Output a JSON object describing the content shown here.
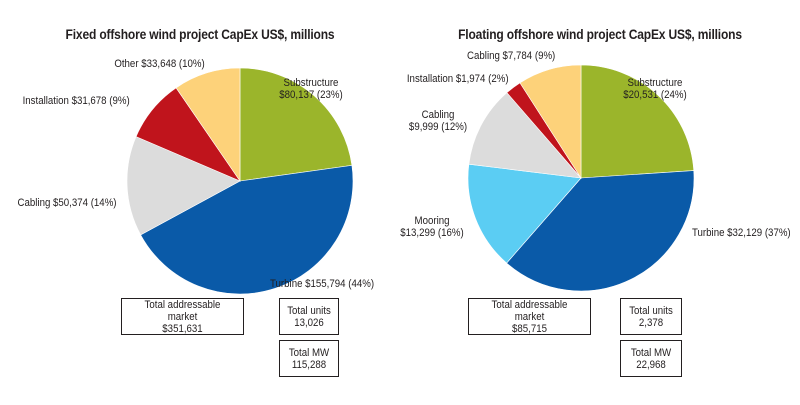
{
  "chart_data": [
    {
      "type": "pie",
      "title": "Fixed offshore wind project CapEx US$, millions",
      "slices": [
        {
          "name": "Substructure",
          "value": 80137,
          "label_line1": "Substructure",
          "label_line2": "$80,137 (23%)",
          "color": "#9bb52b"
        },
        {
          "name": "Turbine",
          "value": 155794,
          "label_line1": "Turbine $155,794 (44%)",
          "label_line2": "",
          "color": "#0a5aa8"
        },
        {
          "name": "Cabling",
          "value": 50374,
          "label_line1": "Cabling $50,374 (14%)",
          "label_line2": "",
          "color": "#dcdcdc"
        },
        {
          "name": "Installation",
          "value": 31678,
          "label_line1": "Installation $31,678 (9%)",
          "label_line2": "",
          "color": "#c0141c"
        },
        {
          "name": "Other",
          "value": 33648,
          "label_line1": "Other $33,648 (10%)",
          "label_line2": "",
          "color": "#fdd27a"
        }
      ],
      "boxes": {
        "market_label": "Total addressable market",
        "market_value": "$351,631",
        "units_label": "Total units",
        "units_value": "13,026",
        "mw_label": "Total MW",
        "mw_value": "115,288"
      }
    },
    {
      "type": "pie",
      "title": "Floating offshore wind project CapEx US$, millions",
      "slices": [
        {
          "name": "Substructure",
          "value": 20531,
          "label_line1": "Substructure",
          "label_line2": "$20,531 (24%)",
          "color": "#9bb52b"
        },
        {
          "name": "Turbine",
          "value": 32129,
          "label_line1": "Turbine $32,129 (37%)",
          "label_line2": "",
          "color": "#0a5aa8"
        },
        {
          "name": "Mooring",
          "value": 13299,
          "label_line1": "Mooring",
          "label_line2": "$13,299 (16%)",
          "color": "#5bcdf3"
        },
        {
          "name": "Cabling",
          "value": 9999,
          "label_line1": "Cabling",
          "label_line2": "$9,999 (12%)",
          "color": "#dcdcdc"
        },
        {
          "name": "Installation",
          "value": 1974,
          "label_line1": "Installation $1,974 (2%)",
          "label_line2": "",
          "color": "#c0141c"
        },
        {
          "name": "Cabling",
          "value": 7784,
          "label_line1": "Cabling $7,784 (9%)",
          "label_line2": "",
          "color": "#fdd27a"
        }
      ],
      "boxes": {
        "market_label": "Total addressable market",
        "market_value": "$85,715",
        "units_label": "Total units",
        "units_value": "2,378",
        "mw_label": "Total MW",
        "mw_value": "22,968"
      }
    }
  ]
}
